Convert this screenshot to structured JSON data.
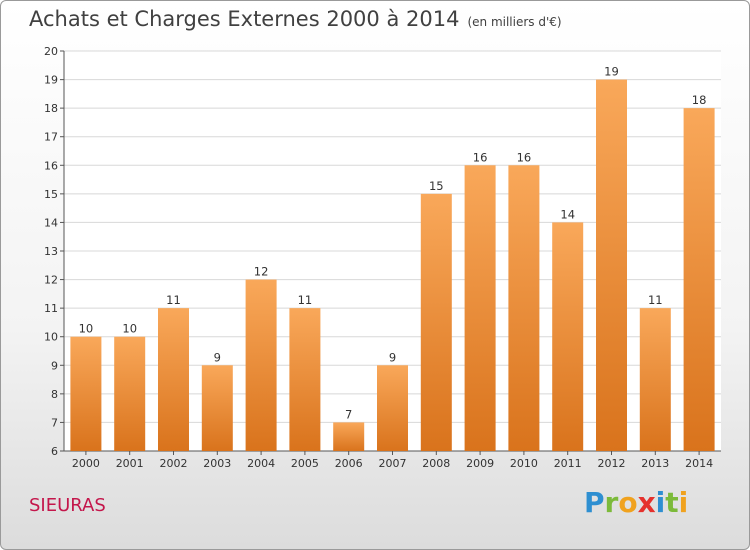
{
  "title": "Achats et Charges Externes 2000 à 2014",
  "subtitle": "(en milliers d'€)",
  "place_name": "SIEURAS",
  "logo": {
    "letters": [
      "P",
      "r",
      "o",
      "x",
      "i",
      "t",
      "i"
    ],
    "colors": [
      "#2e8fd1",
      "#7cba3a",
      "#f0a21e",
      "#e5312d",
      "#2e8fd1",
      "#7cba3a",
      "#f0a21e"
    ]
  },
  "colors": {
    "bar_top": "#f9a85a",
    "bar_bottom": "#d9731c",
    "grid": "#d8d8d8",
    "axis": "#555555"
  },
  "chart_data": {
    "type": "bar",
    "title": "Achats et Charges Externes 2000 à 2014",
    "subtitle": "(en milliers d'€)",
    "categories": [
      "2000",
      "2001",
      "2002",
      "2003",
      "2004",
      "2005",
      "2006",
      "2007",
      "2008",
      "2009",
      "2010",
      "2011",
      "2012",
      "2013",
      "2014"
    ],
    "values": [
      10,
      10,
      11,
      9,
      12,
      11,
      7,
      9,
      15,
      16,
      16,
      14,
      19,
      11,
      18
    ],
    "data_labels": [
      "10",
      "10",
      "11",
      "9",
      "12",
      "11",
      "7",
      "9",
      "15",
      "16",
      "16",
      "14",
      "19",
      "11",
      "18"
    ],
    "yticks": [
      "6",
      "7",
      "8",
      "9",
      "10",
      "11",
      "12",
      "13",
      "14",
      "15",
      "16",
      "17",
      "18",
      "19",
      "20"
    ],
    "ylim": [
      6,
      20
    ],
    "grid": true,
    "legend": "none"
  }
}
